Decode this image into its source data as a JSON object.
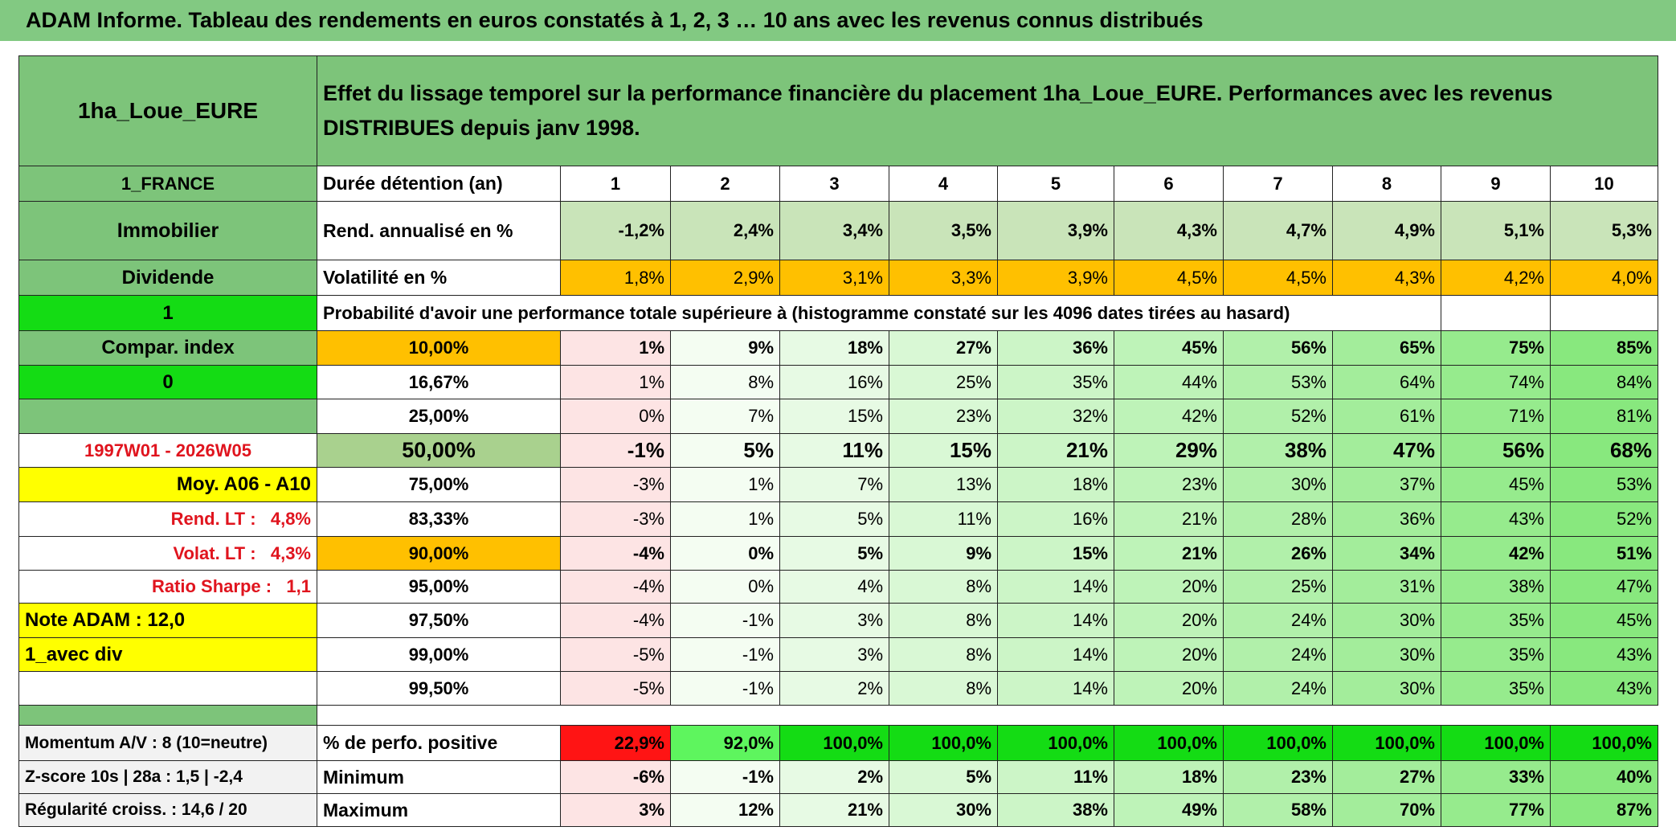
{
  "title": "ADAM Informe. Tableau des rendements en euros constatés à 1, 2, 3 … 10 ans avec les revenus connus distribués",
  "header": {
    "fund": "1ha_Loue_EURE",
    "description": "Effet du lissage temporel sur la performance financière du placement 1ha_Loue_EURE. Performances avec les revenus DISTRIBUES depuis janv 1998."
  },
  "table": {
    "rows": [
      {
        "side": "1_FRANCE",
        "label": "Durée détention (an)",
        "cells": [
          1,
          2,
          3,
          4,
          5,
          6,
          7,
          8,
          9,
          10
        ]
      },
      {
        "side": "Immobilier",
        "label": "Rend. annualisé en %",
        "cells": [
          "-1,2%",
          "2,4%",
          "3,4%",
          "3,5%",
          "3,9%",
          "4,3%",
          "4,7%",
          "4,9%",
          "5,1%",
          "5,3%"
        ]
      },
      {
        "side": "Dividende",
        "label": "Volatilité en %",
        "cells": [
          "1,8%",
          "2,9%",
          "3,1%",
          "3,3%",
          "3,9%",
          "4,5%",
          "4,5%",
          "4,3%",
          "4,2%",
          "4,0%"
        ]
      },
      {
        "side": "1",
        "label": "Probabilité d'avoir une performance totale supérieure à (histogramme constaté sur les 4096 dates tirées au hasard)"
      },
      {
        "side": "Compar. index",
        "label": "10,00%",
        "cells": [
          "1%",
          "9%",
          "18%",
          "27%",
          "36%",
          "45%",
          "56%",
          "65%",
          "75%",
          "85%"
        ]
      },
      {
        "side": "0",
        "label": "16,67%",
        "cells": [
          "1%",
          "8%",
          "16%",
          "25%",
          "35%",
          "44%",
          "53%",
          "64%",
          "74%",
          "84%"
        ]
      },
      {
        "label": "25,00%",
        "cells": [
          "0%",
          "7%",
          "15%",
          "23%",
          "32%",
          "42%",
          "52%",
          "61%",
          "71%",
          "81%"
        ]
      },
      {
        "side": "1997W01 - 2026W05",
        "label": "50,00%",
        "cells": [
          "-1%",
          "5%",
          "11%",
          "15%",
          "21%",
          "29%",
          "38%",
          "47%",
          "56%",
          "68%"
        ]
      },
      {
        "side": "Moy. A06 - A10",
        "label": "75,00%",
        "cells": [
          "-3%",
          "1%",
          "7%",
          "13%",
          "18%",
          "23%",
          "30%",
          "37%",
          "45%",
          "53%"
        ]
      },
      {
        "side": "Rend. LT :   4,8%",
        "label": "83,33%",
        "cells": [
          "-3%",
          "1%",
          "5%",
          "11%",
          "16%",
          "21%",
          "28%",
          "36%",
          "43%",
          "52%"
        ]
      },
      {
        "side": "Volat. LT :   4,3%",
        "label": "90,00%",
        "cells": [
          "-4%",
          "0%",
          "5%",
          "9%",
          "15%",
          "21%",
          "26%",
          "34%",
          "42%",
          "51%"
        ]
      },
      {
        "side": "Ratio Sharpe :   1,1",
        "label": "95,00%",
        "cells": [
          "-4%",
          "0%",
          "4%",
          "8%",
          "14%",
          "20%",
          "25%",
          "31%",
          "38%",
          "47%"
        ]
      },
      {
        "side": "Note ADAM : 12,0",
        "label": "97,50%",
        "cells": [
          "-4%",
          "-1%",
          "3%",
          "8%",
          "14%",
          "20%",
          "24%",
          "30%",
          "35%",
          "45%"
        ]
      },
      {
        "side": "1_avec div",
        "label": "99,00%",
        "cells": [
          "-5%",
          "-1%",
          "3%",
          "8%",
          "14%",
          "20%",
          "24%",
          "30%",
          "35%",
          "43%"
        ]
      },
      {
        "label": "99,50%",
        "cells": [
          "-5%",
          "-1%",
          "2%",
          "8%",
          "14%",
          "20%",
          "24%",
          "30%",
          "35%",
          "43%"
        ]
      },
      {
        "side": "Momentum A/V : 8 (10=neutre)",
        "label": "% de perfo. positive",
        "cells": [
          "22,9%",
          "92,0%",
          "100,0%",
          "100,0%",
          "100,0%",
          "100,0%",
          "100,0%",
          "100,0%",
          "100,0%",
          "100,0%"
        ]
      },
      {
        "side": "Z-score 10s | 28a : 1,5 | -2,4",
        "label": "Minimum",
        "cells": [
          "-6%",
          "-1%",
          "2%",
          "5%",
          "11%",
          "18%",
          "23%",
          "27%",
          "33%",
          "40%"
        ]
      },
      {
        "side": "Régularité croiss. : 14,6 / 20",
        "label": "Maximum",
        "cells": [
          "3%",
          "12%",
          "21%",
          "30%",
          "38%",
          "49%",
          "58%",
          "70%",
          "77%",
          "87%"
        ]
      }
    ]
  }
}
